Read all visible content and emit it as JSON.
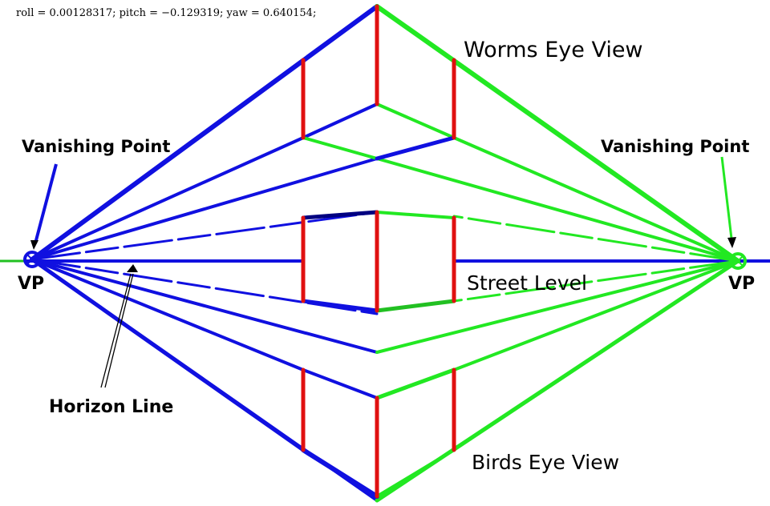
{
  "header": {
    "camera_text": "roll = 0.00128317; pitch = −0.129319; yaw = 0.640154;"
  },
  "labels": {
    "worms_eye": "Worms Eye View",
    "street_level": "Street Level",
    "birds_eye": "Birds Eye View",
    "vanishing_point_left": "Vanishing Point",
    "vanishing_point_right": "Vanishing Point",
    "vp_left": "VP",
    "vp_right": "VP",
    "horizon_line": "Horizon Line"
  },
  "colors": {
    "left_lines": "#1010e0",
    "right_lines": "#22e822",
    "verticals": "#e01010",
    "dark_edge": "#000060",
    "text": "#000000"
  }
}
